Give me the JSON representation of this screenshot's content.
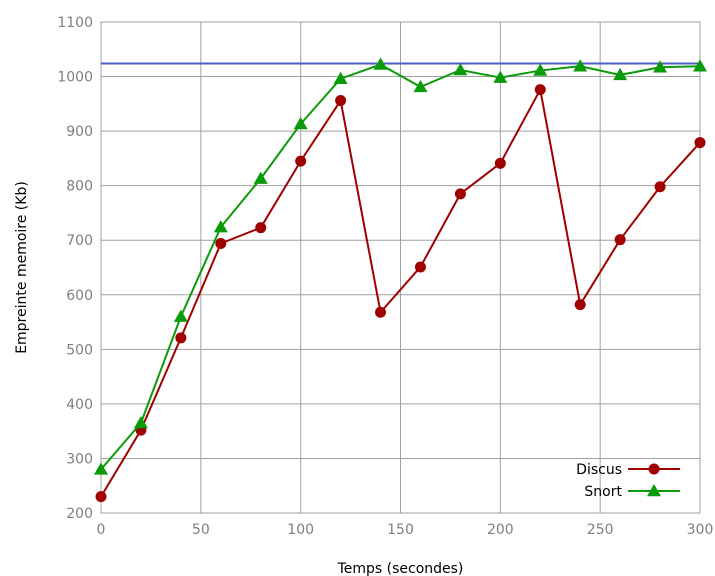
{
  "chart_data": {
    "type": "line",
    "title": "",
    "xlabel": "Temps (secondes)",
    "ylabel": "Empreinte memoire (Kb)",
    "xlim": [
      0,
      300
    ],
    "ylim": [
      200,
      1100
    ],
    "xticks": [
      0,
      50,
      100,
      150,
      200,
      250,
      300
    ],
    "yticks": [
      200,
      300,
      400,
      500,
      600,
      700,
      800,
      900,
      1000,
      1100
    ],
    "grid": true,
    "legend_position": "bottom-right",
    "x": [
      0,
      20,
      40,
      60,
      80,
      100,
      120,
      140,
      160,
      180,
      200,
      220,
      240,
      260,
      280,
      300
    ],
    "reference_line": {
      "y": 1024,
      "color": "#4a5fc1"
    },
    "series": [
      {
        "name": "Discus",
        "color": "#a00000",
        "marker": "circle",
        "values": [
          230,
          352,
          521,
          694,
          723,
          845,
          956,
          568,
          651,
          785,
          841,
          976,
          582,
          701,
          798,
          879
        ]
      },
      {
        "name": "Snort",
        "color": "#0a9a0a",
        "marker": "triangle",
        "values": [
          280,
          365,
          560,
          724,
          813,
          913,
          996,
          1022,
          981,
          1012,
          998,
          1011,
          1019,
          1003,
          1017,
          1019
        ]
      }
    ]
  }
}
